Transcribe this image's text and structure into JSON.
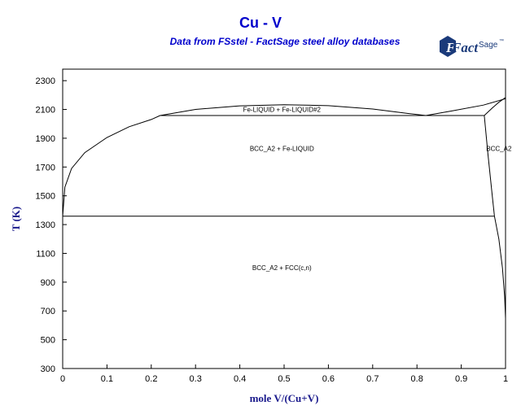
{
  "chart_data": {
    "type": "line",
    "title": "Cu - V",
    "subtitle": "Data from FSstel - FactSage steel alloy databases",
    "xlabel": "mole V/(Cu+V)",
    "ylabel": "T (K)",
    "xlim": [
      0,
      1
    ],
    "ylim": [
      300,
      2380
    ],
    "xticks": [
      0,
      0.1,
      0.2,
      0.3,
      0.4,
      0.5,
      0.6,
      0.7,
      0.8,
      0.9,
      1
    ],
    "xtick_labels": [
      "0",
      "0.1",
      "0.2",
      "0.3",
      "0.4",
      "0.5",
      "0.6",
      "0.7",
      "0.8",
      "0.9",
      "1"
    ],
    "yticks": [
      300,
      500,
      700,
      900,
      1100,
      1300,
      1500,
      1700,
      1900,
      2100,
      2300
    ],
    "ytick_labels": [
      "300",
      "500",
      "700",
      "900",
      "1100",
      "1300",
      "1500",
      "1700",
      "1900",
      "2100",
      "2300"
    ],
    "grid": false,
    "series": [
      {
        "points": [
          [
            0,
            1358
          ],
          [
            0.005,
            1560
          ],
          [
            0.02,
            1690
          ],
          [
            0.05,
            1800
          ],
          [
            0.1,
            1905
          ],
          [
            0.15,
            1980
          ],
          [
            0.2,
            2030
          ],
          [
            0.22,
            2058
          ]
        ]
      },
      {
        "points": [
          [
            0.22,
            2058
          ],
          [
            0.3,
            2100
          ],
          [
            0.4,
            2125
          ],
          [
            0.5,
            2133
          ],
          [
            0.6,
            2126
          ],
          [
            0.7,
            2103
          ],
          [
            0.78,
            2072
          ],
          [
            0.82,
            2058
          ]
        ]
      },
      {
        "points": [
          [
            0.82,
            2058
          ],
          [
            0.88,
            2090
          ],
          [
            0.95,
            2130
          ],
          [
            1,
            2175
          ]
        ]
      },
      {
        "points": [
          [
            0.22,
            2058
          ],
          [
            0.952,
            2058
          ]
        ]
      },
      {
        "points": [
          [
            0.952,
            2058
          ],
          [
            0.96,
            1800
          ],
          [
            0.97,
            1500
          ],
          [
            0.975,
            1358
          ]
        ]
      },
      {
        "points": [
          [
            0,
            1358
          ],
          [
            0.975,
            1358
          ]
        ]
      },
      {
        "points": [
          [
            0.975,
            1358
          ],
          [
            0.985,
            1200
          ],
          [
            0.993,
            1000
          ],
          [
            0.998,
            800
          ],
          [
            1,
            650
          ]
        ]
      },
      {
        "points": [
          [
            0.952,
            2058
          ],
          [
            0.97,
            2110
          ],
          [
            0.985,
            2150
          ],
          [
            1,
            2183
          ]
        ]
      }
    ],
    "annotations": [
      {
        "text": "Fe-LIQUID + Fe-LIQUID#2",
        "x": 0.495,
        "y": 2100
      },
      {
        "text": "BCC_A2 + Fe-LIQUID",
        "x": 0.495,
        "y": 1830
      },
      {
        "text": "BCC_A2",
        "x": 0.985,
        "y": 1830
      },
      {
        "text": "BCC_A2 + FCC(c,n)",
        "x": 0.495,
        "y": 1000
      }
    ]
  },
  "logo": {
    "text_main": "Fact",
    "text_super": "Sage",
    "mark": "™"
  },
  "colors": {
    "title": "#0000cc",
    "axis_label": "#1a1a8c",
    "line": "#000000"
  }
}
